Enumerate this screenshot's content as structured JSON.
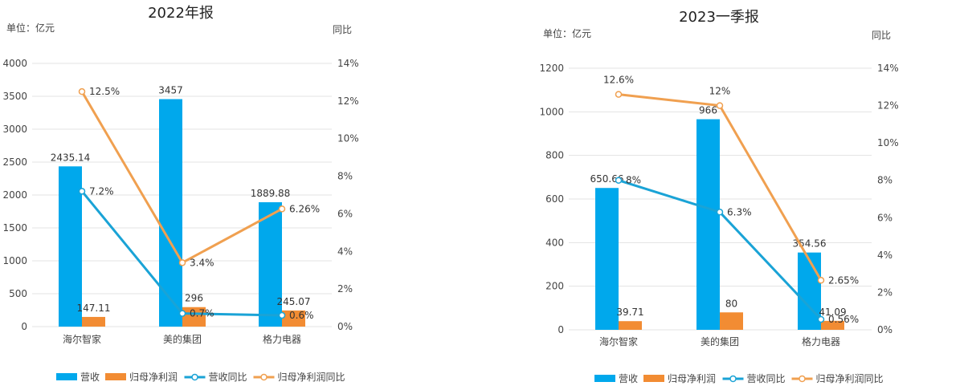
{
  "colors": {
    "revenue": "#00a8ec",
    "profit": "#f28c33",
    "revenue_yoy": "#1aa3d6",
    "profit_yoy": "#f0a050",
    "grid": "#e3e3e3"
  },
  "chart_data": [
    {
      "type": "bar+line",
      "title": "2022年报",
      "left_unit": "单位：亿元",
      "right_unit": "同比",
      "categories": [
        "海尔智家",
        "美的集团",
        "格力电器"
      ],
      "y_left": {
        "min": 0,
        "max": 4000,
        "step": 500,
        "ticks": [
          "0",
          "500",
          "1000",
          "1500",
          "2000",
          "2500",
          "3000",
          "3500",
          "4000"
        ]
      },
      "y_right": {
        "min": 0,
        "max": 14,
        "step": 2,
        "ticks": [
          "0%",
          "2%",
          "4%",
          "6%",
          "8%",
          "10%",
          "12%",
          "14%"
        ]
      },
      "series": [
        {
          "name": "营收",
          "kind": "bar",
          "axis": "left",
          "values": [
            2435.14,
            3457,
            1889.88
          ],
          "labels": [
            "2435.14",
            "3457",
            "1889.88"
          ]
        },
        {
          "name": "归母净利润",
          "kind": "bar",
          "axis": "left",
          "values": [
            147.11,
            296,
            245.07
          ],
          "labels": [
            "147.11",
            "296",
            "245.07"
          ]
        },
        {
          "name": "营收同比",
          "kind": "line",
          "axis": "right",
          "values": [
            7.2,
            0.7,
            0.6
          ],
          "labels": [
            "7.2%",
            "0.7%",
            "0.6%"
          ]
        },
        {
          "name": "归母净利润同比",
          "kind": "line",
          "axis": "right",
          "values": [
            12.5,
            3.4,
            6.26
          ],
          "labels": [
            "12.5%",
            "3.4%",
            "6.26%"
          ]
        }
      ],
      "legend": "bottom"
    },
    {
      "type": "bar+line",
      "title": "2023一季报",
      "left_unit": "单位：亿元",
      "right_unit": "同比",
      "categories": [
        "海尔智家",
        "美的集团",
        "格力电器"
      ],
      "y_left": {
        "min": 0,
        "max": 1200,
        "step": 200,
        "ticks": [
          "0",
          "200",
          "400",
          "600",
          "800",
          "1000",
          "1200"
        ]
      },
      "y_right": {
        "min": 0,
        "max": 14,
        "step": 2,
        "ticks": [
          "0%",
          "2%",
          "4%",
          "6%",
          "8%",
          "10%",
          "12%",
          "14%"
        ]
      },
      "series": [
        {
          "name": "营收",
          "kind": "bar",
          "axis": "left",
          "values": [
            650.66,
            966,
            354.56
          ],
          "labels": [
            "650.66",
            "966",
            "354.56"
          ]
        },
        {
          "name": "归母净利润",
          "kind": "bar",
          "axis": "left",
          "values": [
            39.71,
            80,
            41.09
          ],
          "labels": [
            "39.71",
            "80",
            "41.09"
          ]
        },
        {
          "name": "营收同比",
          "kind": "line",
          "axis": "right",
          "values": [
            8,
            6.3,
            0.56
          ],
          "labels": [
            "8%",
            "6.3%",
            "0.56%"
          ]
        },
        {
          "name": "归母净利润同比",
          "kind": "line",
          "axis": "right",
          "values": [
            12.6,
            12,
            2.65
          ],
          "labels": [
            "12.6%",
            "12%",
            "2.65%"
          ]
        }
      ],
      "legend": "bottom"
    }
  ]
}
